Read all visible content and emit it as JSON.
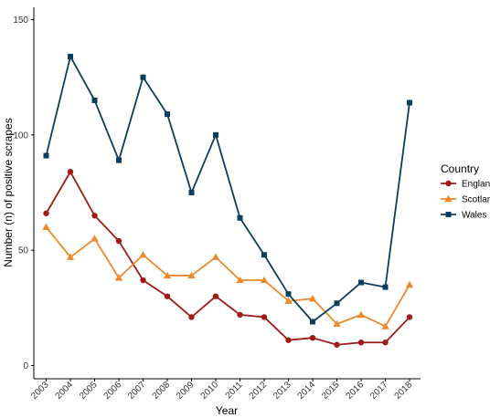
{
  "chart_data": {
    "type": "line",
    "title": "",
    "xlabel": "Year",
    "ylabel": "Number (n) of positive scrapes",
    "x": [
      "2003",
      "2004",
      "2005",
      "2006",
      "2007",
      "2008",
      "2009",
      "2010",
      "2011",
      "2012",
      "2013",
      "2014",
      "2015",
      "2016",
      "2017",
      "2018"
    ],
    "yticks": [
      "0",
      "50",
      "100",
      "150"
    ],
    "ylim": [
      0,
      150
    ],
    "grid": false,
    "legend": {
      "title": "Country",
      "position": "right"
    },
    "series": [
      {
        "name": "England",
        "color": "#9e1b17",
        "marker": "circle",
        "values": [
          66,
          84,
          65,
          54,
          37,
          30,
          21,
          30,
          22,
          21,
          11,
          12,
          9,
          10,
          10,
          21
        ]
      },
      {
        "name": "Scotland",
        "color": "#ec8a2b",
        "marker": "triangle",
        "values": [
          60,
          47,
          55,
          38,
          48,
          39,
          39,
          47,
          37,
          37,
          28,
          29,
          18,
          22,
          17,
          35
        ]
      },
      {
        "name": "Wales",
        "color": "#0b3e5c",
        "marker": "square",
        "values": [
          91,
          134,
          115,
          89,
          125,
          109,
          75,
          100,
          64,
          48,
          31,
          19,
          27,
          36,
          34,
          114
        ]
      }
    ]
  }
}
